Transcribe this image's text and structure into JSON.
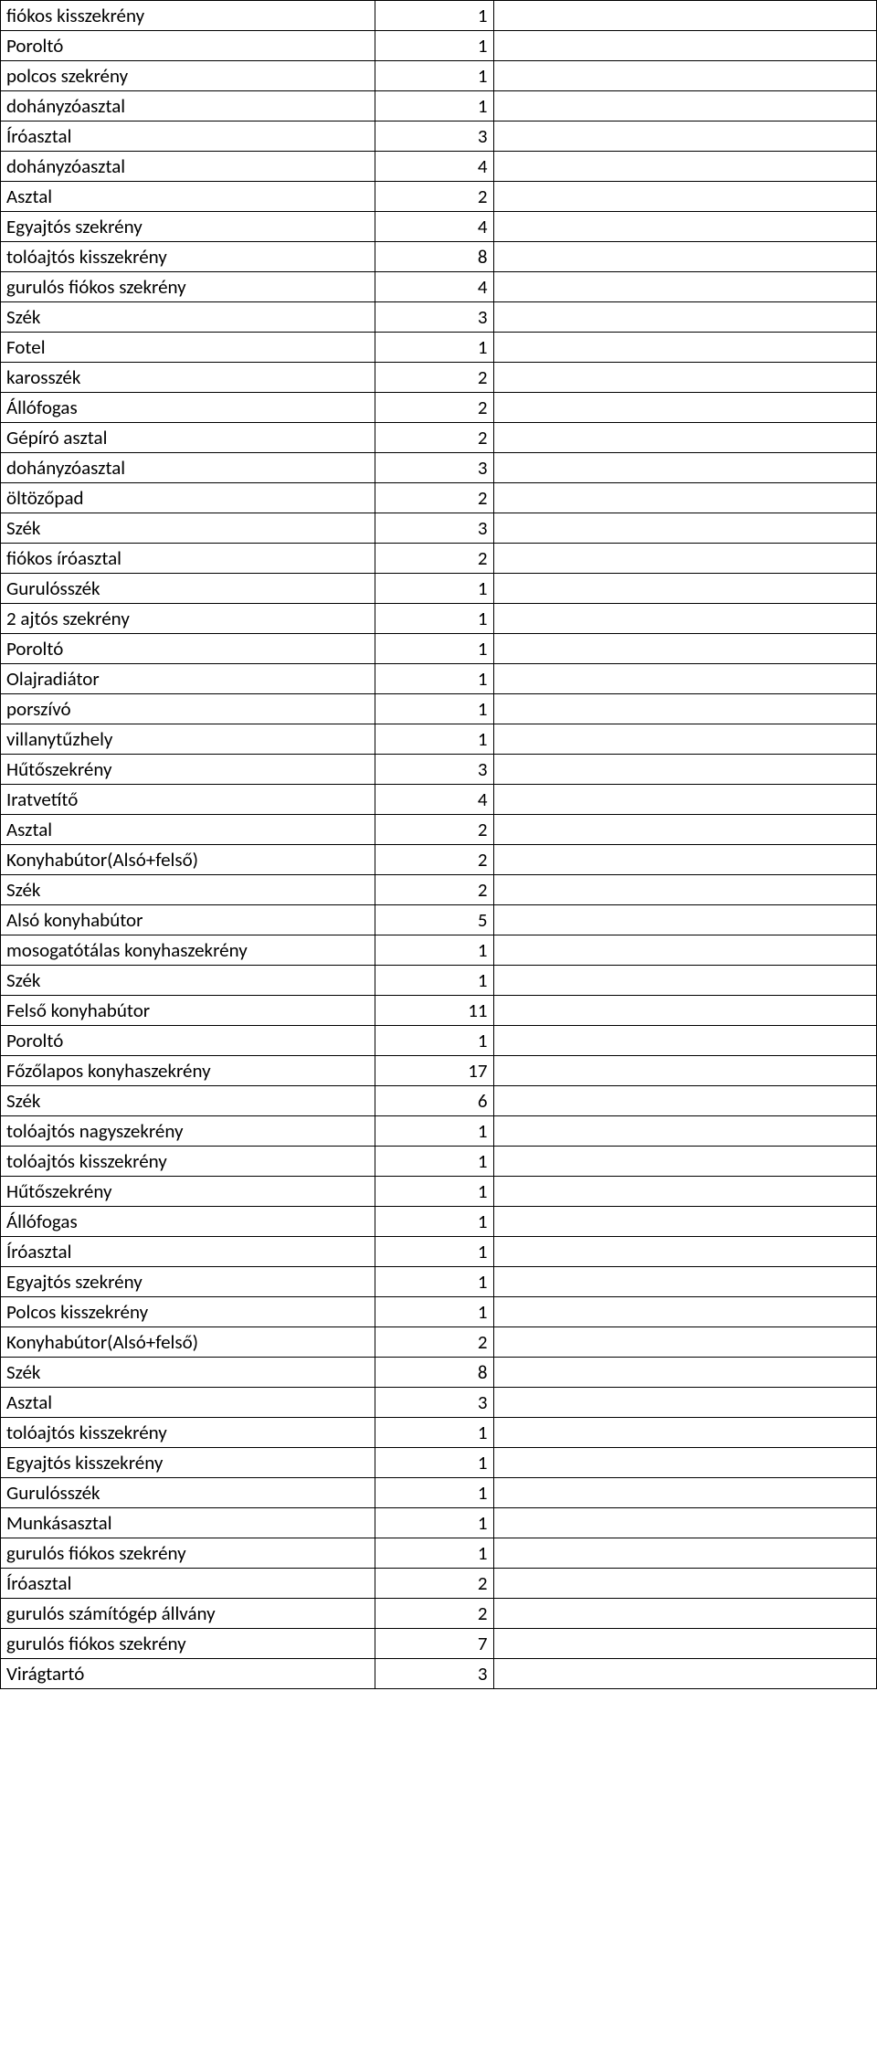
{
  "inventory": {
    "rows": [
      {
        "label": "fiókos kisszekrény",
        "qty": "1"
      },
      {
        "label": "Poroltó",
        "qty": "1"
      },
      {
        "label": "polcos szekrény",
        "qty": "1"
      },
      {
        "label": "dohányzóasztal",
        "qty": "1"
      },
      {
        "label": "Íróasztal",
        "qty": "3"
      },
      {
        "label": "dohányzóasztal",
        "qty": "4"
      },
      {
        "label": "Asztal",
        "qty": "2"
      },
      {
        "label": "Egyajtós szekrény",
        "qty": "4"
      },
      {
        "label": "tolóajtós kisszekrény",
        "qty": "8"
      },
      {
        "label": "gurulós fiókos szekrény",
        "qty": "4"
      },
      {
        "label": "Szék",
        "qty": "3"
      },
      {
        "label": "Fotel",
        "qty": "1"
      },
      {
        "label": "karosszék",
        "qty": "2"
      },
      {
        "label": "Állófogas",
        "qty": "2"
      },
      {
        "label": "Gépíró asztal",
        "qty": "2"
      },
      {
        "label": "dohányzóasztal",
        "qty": "3"
      },
      {
        "label": "öltözőpad",
        "qty": "2"
      },
      {
        "label": "Szék",
        "qty": "3"
      },
      {
        "label": "fiókos íróasztal",
        "qty": "2"
      },
      {
        "label": "Gurulósszék",
        "qty": "1"
      },
      {
        "label": "2 ajtós szekrény",
        "qty": "1"
      },
      {
        "label": "Poroltó",
        "qty": "1"
      },
      {
        "label": "Olajradiátor",
        "qty": "1"
      },
      {
        "label": "porszívó",
        "qty": "1"
      },
      {
        "label": "villanytűzhely",
        "qty": "1"
      },
      {
        "label": "Hűtőszekrény",
        "qty": "3"
      },
      {
        "label": "Iratvetítő",
        "qty": "4"
      },
      {
        "label": "Asztal",
        "qty": "2"
      },
      {
        "label": "Konyhabútor(Alsó+felső)",
        "qty": "2"
      },
      {
        "label": "Szék",
        "qty": "2"
      },
      {
        "label": "Alsó konyhabútor",
        "qty": "5"
      },
      {
        "label": "mosogatótálas konyhaszekrény",
        "qty": "1"
      },
      {
        "label": "Szék",
        "qty": "1"
      },
      {
        "label": "Felső konyhabútor",
        "qty": "11"
      },
      {
        "label": "Poroltó",
        "qty": "1"
      },
      {
        "label": "Főzőlapos konyhaszekrény",
        "qty": "17"
      },
      {
        "label": "Szék",
        "qty": "6"
      },
      {
        "label": "tolóajtós nagyszekrény",
        "qty": "1"
      },
      {
        "label": "tolóajtós kisszekrény",
        "qty": "1"
      },
      {
        "label": "Hűtőszekrény",
        "qty": "1"
      },
      {
        "label": "Állófogas",
        "qty": "1"
      },
      {
        "label": "Íróasztal",
        "qty": "1"
      },
      {
        "label": "Egyajtós szekrény",
        "qty": "1"
      },
      {
        "label": "Polcos kisszekrény",
        "qty": "1"
      },
      {
        "label": "Konyhabútor(Alsó+felső)",
        "qty": "2"
      },
      {
        "label": "Szék",
        "qty": "8"
      },
      {
        "label": "Asztal",
        "qty": "3"
      },
      {
        "label": "tolóajtós kisszekrény",
        "qty": "1"
      },
      {
        "label": "Egyajtós kisszekrény",
        "qty": "1"
      },
      {
        "label": "Gurulósszék",
        "qty": "1"
      },
      {
        "label": "Munkásasztal",
        "qty": "1"
      },
      {
        "label": "gurulós fiókos szekrény",
        "qty": "1"
      },
      {
        "label": "Íróasztal",
        "qty": "2"
      },
      {
        "label": "gurulós számítógép állvány",
        "qty": "2"
      },
      {
        "label": "gurulós fiókos szekrény",
        "qty": "7"
      },
      {
        "label": "Virágtartó",
        "qty": "3"
      }
    ]
  }
}
